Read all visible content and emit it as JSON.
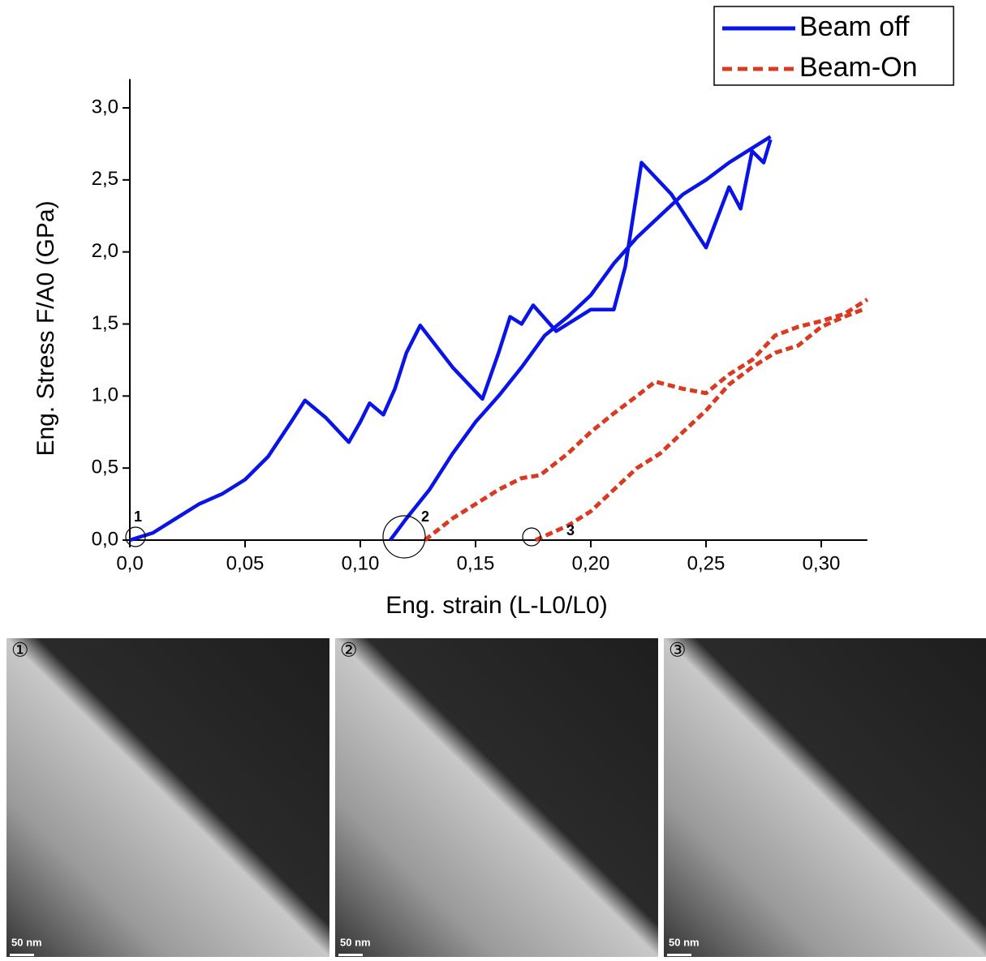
{
  "chart_data": {
    "type": "line",
    "x_label": "Eng. strain (L-L0/L0)",
    "y_label": "Eng. Stress F/A0 (GPa)",
    "xlim": [
      0,
      0.32
    ],
    "ylim": [
      0,
      3.2
    ],
    "xticks": [
      {
        "value": 0,
        "label": "0,0"
      },
      {
        "value": 0.05,
        "label": "0,05"
      },
      {
        "value": 0.1,
        "label": "0,10"
      },
      {
        "value": 0.15,
        "label": "0,15"
      },
      {
        "value": 0.2,
        "label": "0,20"
      },
      {
        "value": 0.25,
        "label": "0,25"
      },
      {
        "value": 0.3,
        "label": "0,30"
      }
    ],
    "yticks": [
      {
        "value": 0,
        "label": "0,0"
      },
      {
        "value": 0.5,
        "label": "0,5"
      },
      {
        "value": 1,
        "label": "1,0"
      },
      {
        "value": 1.5,
        "label": "1,5"
      },
      {
        "value": 2,
        "label": "2,0"
      },
      {
        "value": 2.5,
        "label": "2,5"
      },
      {
        "value": 3,
        "label": "3,0"
      }
    ],
    "legend": "top-right",
    "annotations": [
      "1",
      "2",
      "3"
    ],
    "series": [
      {
        "name": "Beam off",
        "color": "#0a14e6",
        "dash": false,
        "x": [
          0,
          0.01,
          0.02,
          0.03,
          0.04,
          0.05,
          0.06,
          0.07,
          0.076,
          0.085,
          0.095,
          0.1,
          0.104,
          0.11,
          0.115,
          0.12,
          0.126,
          0.14,
          0.153,
          0.16,
          0.165,
          0.17,
          0.175,
          0.185,
          0.2,
          0.21,
          0.215,
          0.222,
          0.235,
          0.25,
          0.26,
          0.265,
          0.27,
          0.275,
          0.278,
          null,
          0.113,
          0.12,
          0.13,
          0.14,
          0.15,
          0.16,
          0.17,
          0.18,
          0.19,
          0.2,
          0.21,
          0.22,
          0.23,
          0.24,
          0.25,
          0.26,
          0.27,
          0.278
        ],
        "values": [
          0,
          0.05,
          0.15,
          0.25,
          0.32,
          0.42,
          0.58,
          0.82,
          0.97,
          0.85,
          0.68,
          0.82,
          0.95,
          0.87,
          1.05,
          1.3,
          1.49,
          1.2,
          0.98,
          1.3,
          1.55,
          1.5,
          1.63,
          1.45,
          1.6,
          1.6,
          1.9,
          2.62,
          2.4,
          2.03,
          2.45,
          2.3,
          2.7,
          2.62,
          2.78,
          null,
          0,
          0.15,
          0.35,
          0.6,
          0.82,
          1.0,
          1.2,
          1.42,
          1.55,
          1.7,
          1.92,
          2.1,
          2.25,
          2.4,
          2.5,
          2.62,
          2.72,
          2.8
        ]
      },
      {
        "name": "Beam-On",
        "color": "#d93a22",
        "dash": true,
        "x": [
          0.128,
          0.14,
          0.15,
          0.16,
          0.17,
          0.178,
          0.19,
          0.2,
          0.21,
          0.22,
          0.228,
          0.24,
          0.25,
          0.26,
          0.27,
          0.28,
          0.29,
          0.3,
          0.31,
          0.32,
          null,
          0.176,
          0.19,
          0.2,
          0.21,
          0.22,
          0.23,
          0.24,
          0.25,
          0.26,
          0.27,
          0.28,
          0.29,
          0.3,
          0.31,
          0.318
        ],
        "values": [
          0,
          0.15,
          0.25,
          0.35,
          0.43,
          0.45,
          0.6,
          0.75,
          0.88,
          1.0,
          1.1,
          1.05,
          1.02,
          1.15,
          1.25,
          1.42,
          1.48,
          1.52,
          1.57,
          1.67,
          null,
          0,
          0.1,
          0.2,
          0.35,
          0.5,
          0.6,
          0.75,
          0.9,
          1.08,
          1.2,
          1.3,
          1.35,
          1.48,
          1.55,
          1.6
        ]
      }
    ]
  },
  "panels": [
    {
      "label": "①",
      "scale": "50 nm"
    },
    {
      "label": "②",
      "scale": "50 nm"
    },
    {
      "label": "③",
      "scale": "50 nm"
    }
  ]
}
